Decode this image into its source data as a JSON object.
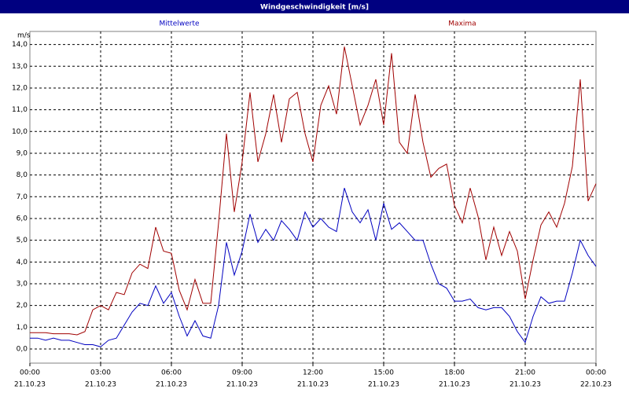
{
  "chart_data": {
    "type": "line",
    "title": "Windgeschwindigkeit [m/s]",
    "y_unit": "m/s",
    "x": [
      "21.10.23 00:00",
      "21.10.23 00:20",
      "21.10.23 00:40",
      "21.10.23 01:00",
      "21.10.23 01:20",
      "21.10.23 01:40",
      "21.10.23 02:00",
      "21.10.23 02:20",
      "21.10.23 02:40",
      "21.10.23 03:00",
      "21.10.23 03:20",
      "21.10.23 03:40",
      "21.10.23 04:00",
      "21.10.23 04:20",
      "21.10.23 04:40",
      "21.10.23 05:00",
      "21.10.23 05:20",
      "21.10.23 05:40",
      "21.10.23 06:00",
      "21.10.23 06:20",
      "21.10.23 06:40",
      "21.10.23 07:00",
      "21.10.23 07:20",
      "21.10.23 07:40",
      "21.10.23 08:00",
      "21.10.23 08:20",
      "21.10.23 08:40",
      "21.10.23 09:00",
      "21.10.23 09:20",
      "21.10.23 09:40",
      "21.10.23 10:00",
      "21.10.23 10:20",
      "21.10.23 10:40",
      "21.10.23 11:00",
      "21.10.23 11:20",
      "21.10.23 11:40",
      "21.10.23 12:00",
      "21.10.23 12:20",
      "21.10.23 12:40",
      "21.10.23 13:00",
      "21.10.23 13:20",
      "21.10.23 13:40",
      "21.10.23 14:00",
      "21.10.23 14:20",
      "21.10.23 14:40",
      "21.10.23 15:00",
      "21.10.23 15:20",
      "21.10.23 15:40",
      "21.10.23 16:00",
      "21.10.23 16:20",
      "21.10.23 16:40",
      "21.10.23 17:00",
      "21.10.23 17:20",
      "21.10.23 17:40",
      "21.10.23 18:00",
      "21.10.23 18:20",
      "21.10.23 18:40",
      "21.10.23 19:00",
      "21.10.23 19:20",
      "21.10.23 19:40",
      "21.10.23 20:00",
      "21.10.23 20:20",
      "21.10.23 20:40",
      "21.10.23 21:00",
      "21.10.23 21:20",
      "21.10.23 21:40",
      "21.10.23 22:00",
      "21.10.23 22:20",
      "21.10.23 22:40",
      "21.10.23 23:00",
      "21.10.23 23:20",
      "21.10.23 23:40",
      "22.10.23 00:00"
    ],
    "series": [
      {
        "name": "Mittelwerte",
        "color": "#0000c0",
        "values": [
          0.5,
          0.5,
          0.4,
          0.5,
          0.4,
          0.4,
          0.3,
          0.2,
          0.2,
          0.1,
          0.4,
          0.5,
          1.1,
          1.7,
          2.1,
          2.0,
          2.9,
          2.1,
          2.6,
          1.5,
          0.6,
          1.3,
          0.6,
          0.5,
          2.0,
          4.9,
          3.4,
          4.5,
          6.2,
          4.9,
          5.5,
          5.0,
          5.9,
          5.5,
          5.0,
          6.3,
          5.6,
          6.0,
          5.6,
          5.4,
          7.4,
          6.3,
          5.8,
          6.4,
          5.0,
          6.7,
          5.5,
          5.8,
          5.4,
          5.0,
          5.0,
          3.9,
          3.0,
          2.8,
          2.2,
          2.2,
          2.3,
          1.9,
          1.8,
          1.9,
          1.9,
          1.5,
          0.8,
          0.3,
          1.5,
          2.4,
          2.1,
          2.2,
          2.2,
          3.5,
          5.0,
          4.3,
          3.8
        ]
      },
      {
        "name": "Maxima",
        "color": "#a00000",
        "values": [
          0.75,
          0.75,
          0.75,
          0.7,
          0.7,
          0.7,
          0.65,
          0.8,
          1.8,
          2.0,
          1.8,
          2.6,
          2.5,
          3.5,
          3.9,
          3.7,
          5.6,
          4.5,
          4.4,
          2.7,
          1.8,
          3.2,
          2.1,
          2.1,
          5.8,
          9.9,
          6.3,
          8.6,
          11.8,
          8.6,
          9.9,
          11.7,
          9.5,
          11.5,
          11.8,
          9.9,
          8.6,
          11.2,
          12.1,
          10.8,
          13.9,
          12.1,
          10.3,
          11.2,
          12.4,
          10.3,
          13.6,
          9.5,
          9.0,
          11.7,
          9.5,
          7.9,
          8.3,
          8.5,
          6.6,
          5.8,
          7.4,
          6.1,
          4.1,
          5.6,
          4.3,
          5.4,
          4.5,
          2.3,
          4.1,
          5.7,
          6.3,
          5.6,
          6.7,
          8.4,
          12.4,
          6.8,
          7.6
        ]
      }
    ],
    "xlim": [
      "21.10.23 00:00",
      "22.10.23 00:00"
    ],
    "xticks": [
      {
        "value": "21.10.23 00:00",
        "label": [
          "00:00",
          "21.10.23"
        ]
      },
      {
        "value": "21.10.23 03:00",
        "label": [
          "03:00",
          "21.10.23"
        ]
      },
      {
        "value": "21.10.23 06:00",
        "label": [
          "06:00",
          "21.10.23"
        ]
      },
      {
        "value": "21.10.23 09:00",
        "label": [
          "09:00",
          "21.10.23"
        ]
      },
      {
        "value": "21.10.23 12:00",
        "label": [
          "12:00",
          "21.10.23"
        ]
      },
      {
        "value": "21.10.23 15:00",
        "label": [
          "15:00",
          "21.10.23"
        ]
      },
      {
        "value": "21.10.23 18:00",
        "label": [
          "18:00",
          "21.10.23"
        ]
      },
      {
        "value": "21.10.23 21:00",
        "label": [
          "21:00",
          "21.10.23"
        ]
      },
      {
        "value": "22.10.23 00:00",
        "label": [
          "00:00",
          "22.10.23"
        ]
      }
    ],
    "ylim": [
      -0.65,
      14.6
    ],
    "yticks": [
      {
        "value": 0,
        "label": "0,0"
      },
      {
        "value": 1,
        "label": "1,0"
      },
      {
        "value": 2,
        "label": "2,0"
      },
      {
        "value": 3,
        "label": "3,0"
      },
      {
        "value": 4,
        "label": "4,0"
      },
      {
        "value": 5,
        "label": "5,0"
      },
      {
        "value": 6,
        "label": "6,0"
      },
      {
        "value": 7,
        "label": "7,0"
      },
      {
        "value": 8,
        "label": "8,0"
      },
      {
        "value": 9,
        "label": "9,0"
      },
      {
        "value": 10,
        "label": "10,0"
      },
      {
        "value": 11,
        "label": "11,0"
      },
      {
        "value": 12,
        "label": "12,0"
      },
      {
        "value": 13,
        "label": "13,0"
      },
      {
        "value": 14,
        "label": "14,0"
      }
    ],
    "grid": true
  }
}
